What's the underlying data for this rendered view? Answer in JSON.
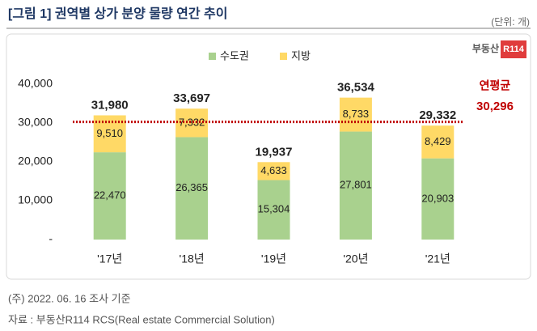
{
  "chart_data": {
    "type": "stacked-bar",
    "title": "[그림 1] 권역별 상가 분양 물량 연간 추이",
    "unit": "(단위: 개)",
    "logo": {
      "text": "부동산",
      "badge": "R114"
    },
    "categories": [
      "'17년",
      "'18년",
      "'19년",
      "'20년",
      "'21년"
    ],
    "series": [
      {
        "name": "수도권",
        "color": "#a9d18e",
        "values": [
          22470,
          26365,
          15304,
          27801,
          20903
        ],
        "value_labels": [
          "22,470",
          "26,365",
          "15,304",
          "27,801",
          "20,903"
        ]
      },
      {
        "name": "지방",
        "color": "#ffd966",
        "values": [
          9510,
          7332,
          4633,
          8733,
          8429
        ],
        "value_labels": [
          "9,510",
          "7,332",
          "4,633",
          "8,733",
          "8,429"
        ]
      }
    ],
    "totals": {
      "values": [
        31980,
        33697,
        19937,
        36534,
        29332
      ],
      "value_labels": [
        "31,980",
        "33,697",
        "19,937",
        "36,534",
        "29,332"
      ]
    },
    "average": {
      "label": "연평균",
      "value": 30296,
      "value_label": "30,296",
      "color": "#c00000"
    },
    "ylim": [
      0,
      40000
    ],
    "yticks": [
      {
        "value": 0,
        "label": "-"
      },
      {
        "value": 10000,
        "label": "10,000"
      },
      {
        "value": 20000,
        "label": "20,000"
      },
      {
        "value": 30000,
        "label": "30,000"
      },
      {
        "value": 40000,
        "label": "40,000"
      }
    ],
    "note": "(주) 2022. 06. 16 조사 기준",
    "source": "자료 : 부동산R114 RCS(Real estate Commercial Solution)"
  }
}
